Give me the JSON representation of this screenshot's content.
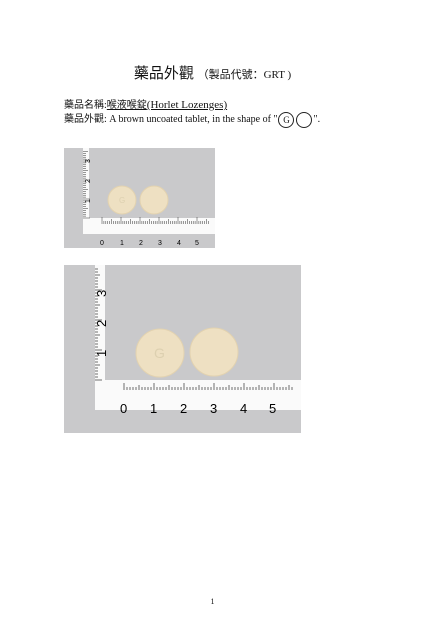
{
  "header": {
    "title": "藥品外觀",
    "subtitle": "（製品代號：GRT )"
  },
  "info": {
    "name_label": "藥品名稱:",
    "name_zh": "喉液喉錠",
    "name_en": "(Horlet Lozenges)",
    "appearance_label": "藥品外觀:",
    "appearance_text": " A brown uncoated tablet, in the shape of \"",
    "mark_front": "G",
    "mark_back": "",
    "appearance_end": "\"."
  },
  "photos": [
    {
      "ruler_x_labels": [
        "0",
        "1",
        "2",
        "3",
        "4",
        "5"
      ],
      "ruler_y_labels": [
        "1",
        "2",
        "3"
      ],
      "tablet_marks": [
        "G",
        ""
      ]
    },
    {
      "ruler_x_labels": [
        "0",
        "1",
        "2",
        "3",
        "4",
        "5"
      ],
      "ruler_y_labels": [
        "1",
        "2",
        "3"
      ],
      "tablet_marks": [
        "G",
        ""
      ]
    }
  ],
  "colors": {
    "background": "#c9c9cb",
    "tablet": "#eee0c2",
    "ruler": "#fafafa"
  },
  "footer": {
    "page_number": "1"
  }
}
